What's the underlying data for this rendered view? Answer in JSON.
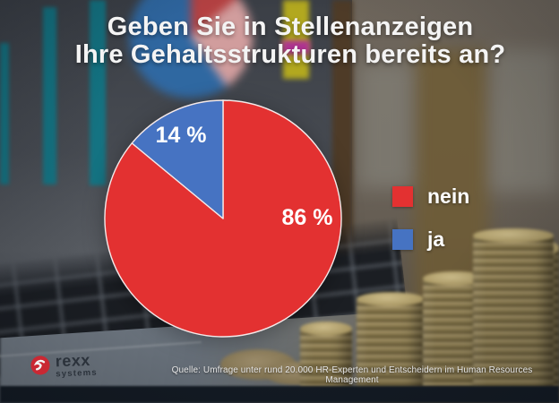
{
  "title": {
    "line1": "Geben Sie in Stellenanzeigen",
    "line2": "Ihre Gehaltsstrukturen bereits an?"
  },
  "chart_data": {
    "type": "pie",
    "title": "Geben Sie in Stellenanzeigen Ihre Gehaltsstrukturen bereits an?",
    "labels": [
      "nein",
      "ja"
    ],
    "values": [
      86,
      14
    ],
    "unit": "%",
    "data_labels": [
      "86 %",
      "14 %"
    ],
    "colors": [
      "#e33131",
      "#4673c2"
    ],
    "start_angle_deg": 0,
    "direction": "clockwise",
    "legend_position": "right",
    "slice_border_color": "#f5e9e9"
  },
  "source": "Quelle: Umfrage unter rund 20.000 HR-Experten und Entscheidern im Human Resources Management",
  "logo": {
    "brand": "rexx",
    "sub": "systems",
    "icon_color": "#d3232e"
  }
}
